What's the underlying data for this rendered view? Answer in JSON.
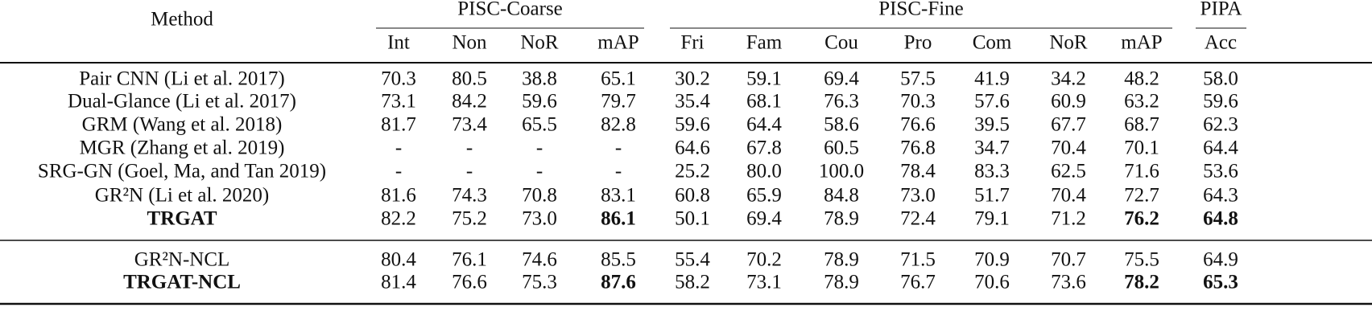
{
  "table": {
    "header": {
      "method": "Method",
      "groups": [
        {
          "label": "PISC-Coarse",
          "columns": [
            "Int",
            "Non",
            "NoR",
            "mAP"
          ]
        },
        {
          "label": "PISC-Fine",
          "columns": [
            "Fri",
            "Fam",
            "Cou",
            "Pro",
            "Com",
            "NoR",
            "mAP"
          ]
        },
        {
          "label": "PIPA",
          "columns": [
            "Acc"
          ]
        }
      ]
    },
    "sections": [
      {
        "rows": [
          {
            "method": "Pair CNN (Li et al. 2017)",
            "cells": [
              "70.3",
              "80.5",
              "38.8",
              "65.1",
              "30.2",
              "59.1",
              "69.4",
              "57.5",
              "41.9",
              "34.2",
              "48.2",
              "58.0"
            ]
          },
          {
            "method": "Dual-Glance (Li et al. 2017)",
            "cells": [
              "73.1",
              "84.2",
              "59.6",
              "79.7",
              "35.4",
              "68.1",
              "76.3",
              "70.3",
              "57.6",
              "60.9",
              "63.2",
              "59.6"
            ]
          },
          {
            "method": "GRM (Wang et al. 2018)",
            "cells": [
              "81.7",
              "73.4",
              "65.5",
              "82.8",
              "59.6",
              "64.4",
              "58.6",
              "76.6",
              "39.5",
              "67.7",
              "68.7",
              "62.3"
            ]
          },
          {
            "method": "MGR (Zhang et al. 2019)",
            "cells": [
              "-",
              "-",
              "-",
              "-",
              "64.6",
              "67.8",
              "60.5",
              "76.8",
              "34.7",
              "70.4",
              "70.1",
              "64.4"
            ]
          },
          {
            "method": "SRG-GN (Goel, Ma, and Tan 2019)",
            "cells": [
              "-",
              "-",
              "-",
              "-",
              "25.2",
              "80.0",
              "100.0",
              "78.4",
              "83.3",
              "62.5",
              "71.6",
              "53.6"
            ]
          },
          {
            "method": "GR²N (Li et al. 2020)",
            "cells": [
              "81.6",
              "74.3",
              "70.8",
              "83.1",
              "60.8",
              "65.9",
              "84.8",
              "73.0",
              "51.7",
              "70.4",
              "72.7",
              "64.3"
            ]
          },
          {
            "method": "TRGAT",
            "bold": true,
            "bold_cells": [
              3,
              10,
              11
            ],
            "cells": [
              "82.2",
              "75.2",
              "73.0",
              "86.1",
              "50.1",
              "69.4",
              "78.9",
              "72.4",
              "79.1",
              "71.2",
              "76.2",
              "64.8"
            ]
          }
        ]
      },
      {
        "rows": [
          {
            "method": "GR²N-NCL",
            "cells": [
              "80.4",
              "76.1",
              "74.6",
              "85.5",
              "55.4",
              "70.2",
              "78.9",
              "71.5",
              "70.9",
              "70.7",
              "75.5",
              "64.9"
            ]
          },
          {
            "method": "TRGAT-NCL",
            "bold": true,
            "bold_cells": [
              3,
              10,
              11
            ],
            "cells": [
              "81.4",
              "76.6",
              "75.3",
              "87.6",
              "58.2",
              "73.1",
              "78.9",
              "76.7",
              "70.6",
              "73.6",
              "78.2",
              "65.3"
            ]
          }
        ]
      }
    ]
  }
}
